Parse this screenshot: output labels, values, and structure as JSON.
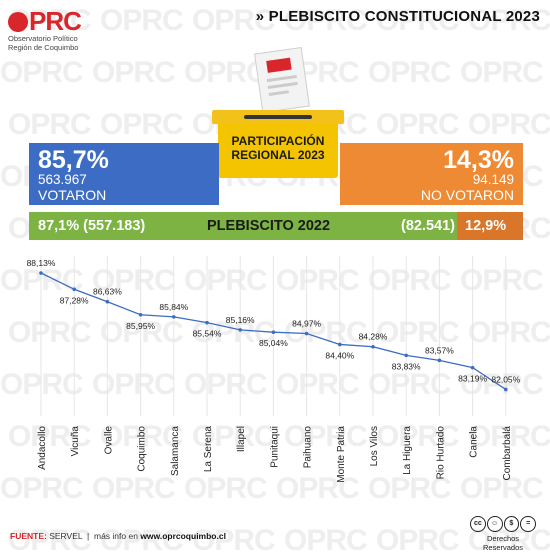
{
  "header": {
    "logo_mark": "PRC",
    "logo_sub1": "Observatorio Político",
    "logo_sub2": "Región de Coquimbo",
    "title": "» PLEBISCITO CONSTITUCIONAL 2023",
    "watermark": "OPRC"
  },
  "ballot": {
    "line1": "PARTICIPACIÓN",
    "line2": "REGIONAL 2023"
  },
  "votaron": {
    "percent": "85,7%",
    "count": "563.967",
    "label": "VOTARON"
  },
  "no_votaron": {
    "percent": "14,3%",
    "count": "94.149",
    "label": "NO VOTARON"
  },
  "plebiscito_2022": {
    "left": "87,1% (557.183)",
    "center": "PLEBISCITO 2022",
    "right": "(82.541)",
    "percent_right": "12,9%",
    "share_left": 0.871
  },
  "chart_data": {
    "type": "line",
    "categories": [
      "Andacollo",
      "Vicuña",
      "Ovalle",
      "Coquimbo",
      "Salamanca",
      "La Serena",
      "Illapel",
      "Punitaqui",
      "Paihuano",
      "Monte Patria",
      "Los Vilos",
      "La Higuera",
      "Rio Hurtado",
      "Canela",
      "Combarbalá"
    ],
    "values": [
      88.13,
      87.28,
      86.63,
      85.95,
      85.84,
      85.54,
      85.16,
      85.04,
      84.97,
      84.4,
      84.28,
      83.83,
      83.57,
      83.19,
      82.05
    ],
    "labels": [
      "88,13%",
      "87,28%",
      "86,63%",
      "85,95%",
      "85,84%",
      "85,54%",
      "85,16%",
      "85,04%",
      "84,97%",
      "84,40%",
      "84,28%",
      "83,83%",
      "83,57%",
      "83,19%",
      "82,05%"
    ],
    "label_pos": [
      "above",
      "below",
      "above",
      "below",
      "above",
      "below",
      "above",
      "below",
      "above",
      "below",
      "above",
      "below",
      "above",
      "below",
      "above"
    ],
    "ylim": [
      81.5,
      88.6
    ],
    "line_color": "#3d6cc4",
    "grid": true
  },
  "footer": {
    "source_label": "FUENTE:",
    "source": "SERVEL",
    "sep": "|",
    "more_info": "más info en",
    "url": "www.oprcoquimbo.cl",
    "rights": "Derechos Reservados",
    "cc_icons": [
      "cc-icon",
      "by-icon",
      "nc-icon",
      "nd-icon"
    ]
  },
  "colors": {
    "brand_red": "#d8262a",
    "blue": "#3d6cc4",
    "orange": "#ef8a34",
    "dark_orange": "#d9762a",
    "green": "#7cb342",
    "yellow": "#f5c400"
  }
}
